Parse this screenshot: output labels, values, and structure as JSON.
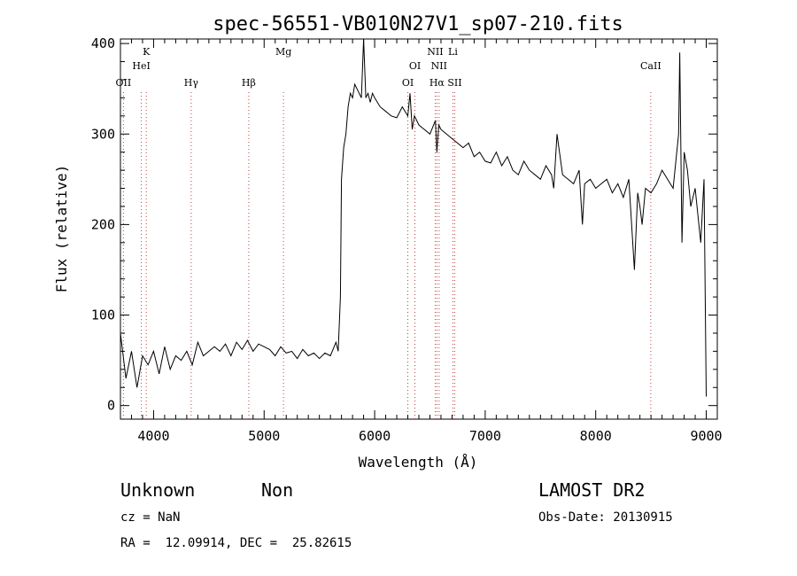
{
  "chart_data": {
    "type": "line",
    "title": "spec-56551-VB010N27V1_sp07-210.fits",
    "xlabel": "Wavelength (Å)",
    "ylabel": "Flux (relative)",
    "xlim": [
      3700,
      9100
    ],
    "ylim": [
      -15,
      405
    ],
    "xticks": [
      4000,
      5000,
      6000,
      7000,
      8000,
      9000
    ],
    "yticks": [
      0,
      100,
      200,
      300,
      400
    ],
    "grid": false,
    "series": [
      {
        "x": [
          3700,
          3750,
          3800,
          3850,
          3900,
          3950,
          4000,
          4050,
          4100,
          4150,
          4200,
          4250,
          4300,
          4350,
          4400,
          4450,
          4500,
          4550,
          4600,
          4650,
          4700,
          4750,
          4800,
          4850,
          4900,
          4950,
          5000,
          5050,
          5100,
          5150,
          5200,
          5250,
          5300,
          5350,
          5400,
          5450,
          5500,
          5550,
          5600,
          5650,
          5670,
          5690,
          5700,
          5720,
          5740,
          5760,
          5780,
          5800,
          5820,
          5840,
          5860,
          5880,
          5900,
          5920,
          5940,
          5960,
          5980,
          6000,
          6050,
          6100,
          6150,
          6200,
          6250,
          6300,
          6320,
          6340,
          6360,
          6400,
          6450,
          6500,
          6550,
          6563,
          6580,
          6600,
          6650,
          6700,
          6750,
          6800,
          6850,
          6900,
          6950,
          7000,
          7050,
          7100,
          7150,
          7200,
          7250,
          7300,
          7350,
          7400,
          7450,
          7500,
          7550,
          7600,
          7620,
          7650,
          7700,
          7750,
          7800,
          7850,
          7880,
          7900,
          7950,
          8000,
          8050,
          8100,
          8150,
          8200,
          8250,
          8300,
          8350,
          8380,
          8400,
          8420,
          8450,
          8500,
          8550,
          8600,
          8650,
          8700,
          8750,
          8760,
          8780,
          8800,
          8830,
          8860,
          8900,
          8950,
          8980,
          9000
        ],
        "values": [
          80,
          30,
          60,
          20,
          55,
          45,
          60,
          35,
          65,
          40,
          55,
          50,
          60,
          45,
          70,
          55,
          60,
          65,
          60,
          68,
          55,
          70,
          62,
          72,
          60,
          68,
          65,
          62,
          55,
          65,
          58,
          60,
          52,
          62,
          55,
          58,
          52,
          58,
          55,
          70,
          60,
          120,
          250,
          285,
          300,
          330,
          345,
          340,
          355,
          350,
          345,
          340,
          405,
          340,
          345,
          335,
          345,
          340,
          330,
          325,
          320,
          318,
          330,
          320,
          345,
          305,
          320,
          310,
          305,
          300,
          315,
          280,
          310,
          305,
          300,
          295,
          290,
          285,
          290,
          275,
          280,
          270,
          268,
          280,
          265,
          275,
          260,
          255,
          270,
          260,
          255,
          250,
          265,
          255,
          240,
          300,
          255,
          250,
          245,
          260,
          200,
          245,
          250,
          240,
          245,
          250,
          235,
          245,
          230,
          250,
          150,
          235,
          220,
          200,
          240,
          235,
          245,
          260,
          250,
          240,
          300,
          390,
          180,
          280,
          260,
          220,
          240,
          180,
          250,
          10
        ]
      }
    ],
    "annotations": [
      {
        "label": "OII",
        "x": 3727,
        "row": 4
      },
      {
        "label": "K",
        "x": 3934,
        "row": 1
      },
      {
        "label": "HeI",
        "x": 3889,
        "row": 2
      },
      {
        "label": "Hγ",
        "x": 4340,
        "row": 4
      },
      {
        "label": "Hβ",
        "x": 4861,
        "row": 3
      },
      {
        "label": "Mg",
        "x": 5175,
        "row": 1
      },
      {
        "label": "OI",
        "x": 6300,
        "row": 3
      },
      {
        "label": "OI",
        "x": 6364,
        "row": 2
      },
      {
        "label": "NII",
        "x": 6548,
        "row": 1
      },
      {
        "label": "NII",
        "x": 6583,
        "row": 2
      },
      {
        "label": "Hα",
        "x": 6563,
        "row": 3
      },
      {
        "label": "Li",
        "x": 6708,
        "row": 1
      },
      {
        "label": "SII",
        "x": 6724,
        "row": 3
      },
      {
        "label": "CaII",
        "x": 8498,
        "row": 2
      }
    ],
    "line_color": "#000000",
    "marker_color": "#c04040"
  },
  "info": {
    "class_text": "Unknown",
    "subclass_text": "Non",
    "cz_text": "cz = NaN",
    "coords_text": "RA =  12.09914, DEC =  25.82615",
    "survey_text": "LAMOST DR2",
    "obsdate_text": "Obs-Date: 20130915"
  }
}
